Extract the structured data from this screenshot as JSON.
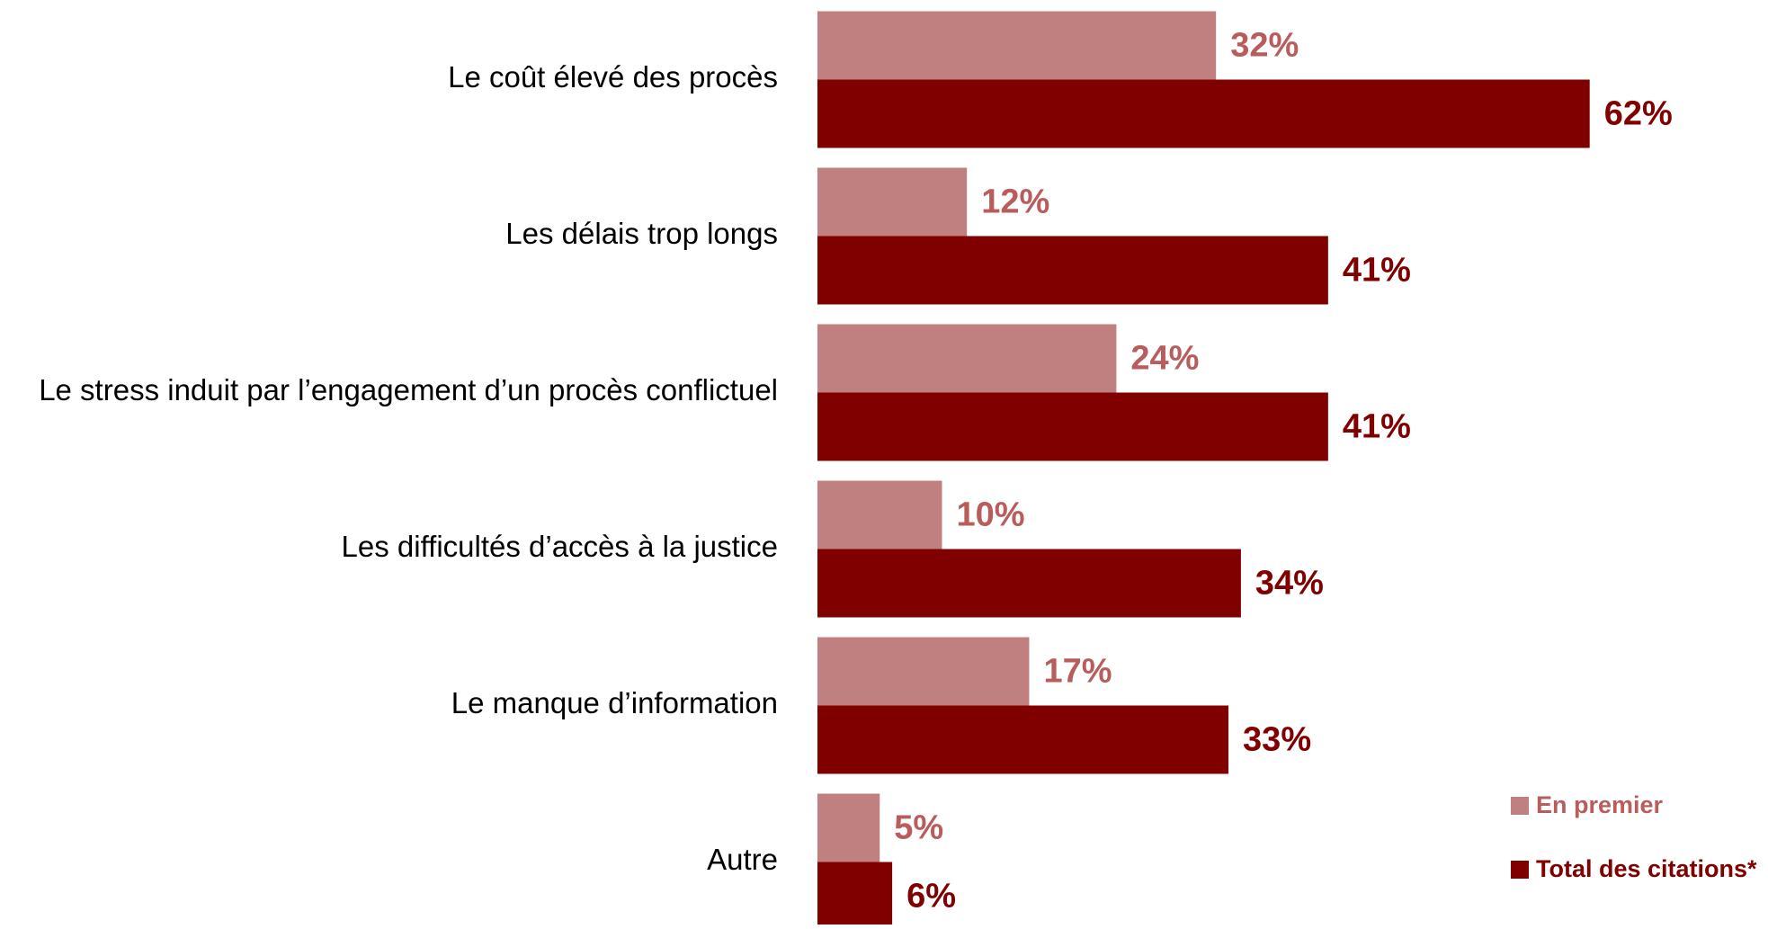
{
  "chart_data": {
    "type": "barh",
    "categories": [
      "Le coût élevé des procès",
      "Les délais trop longs",
      "Le stress induit par l’engagement d’un procès conflictuel",
      "Les difficultés d’accès à la justice",
      "Le manque d’information",
      "Autre"
    ],
    "series": [
      {
        "name": "En premier",
        "color": "#c08080",
        "values": [
          32,
          12,
          24,
          10,
          17,
          5
        ],
        "value_labels": [
          "32%",
          "12%",
          "24%",
          "10%",
          "17%",
          "5%"
        ]
      },
      {
        "name": "Total des citations*",
        "color": "#800000",
        "values": [
          62,
          41,
          41,
          34,
          33,
          6
        ],
        "value_labels": [
          "62%",
          "41%",
          "41%",
          "34%",
          "33%",
          "6%"
        ]
      }
    ],
    "legend": "bottom-right"
  }
}
